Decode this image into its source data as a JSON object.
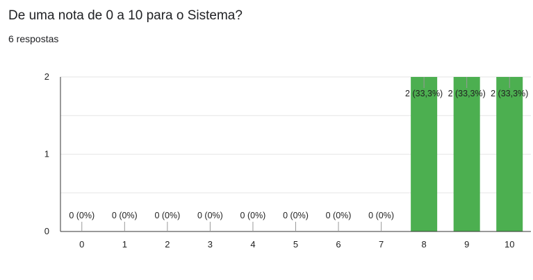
{
  "header": {
    "question": "De uma nota de 0 a 10 para o Sistema?",
    "responses": "6 respostas"
  },
  "chart_data": {
    "type": "bar",
    "title": "De uma nota de 0 a 10 para o Sistema?",
    "categories": [
      "0",
      "1",
      "2",
      "3",
      "4",
      "5",
      "6",
      "7",
      "8",
      "9",
      "10"
    ],
    "values": [
      0,
      0,
      0,
      0,
      0,
      0,
      0,
      0,
      2,
      2,
      2
    ],
    "data_labels": [
      "0 (0%)",
      "0 (0%)",
      "0 (0%)",
      "0 (0%)",
      "0 (0%)",
      "0 (0%)",
      "0 (0%)",
      "0 (0%)",
      "2 (33,3%)",
      "2 (33,3%)",
      "2 (33,3%)"
    ],
    "y_ticks": [
      "0",
      "1",
      "2"
    ],
    "ylim": [
      0,
      2
    ],
    "grid": true,
    "bar_color": "#4caf50",
    "grid_color": "#e6e6e6",
    "axis_color": "#333333"
  }
}
